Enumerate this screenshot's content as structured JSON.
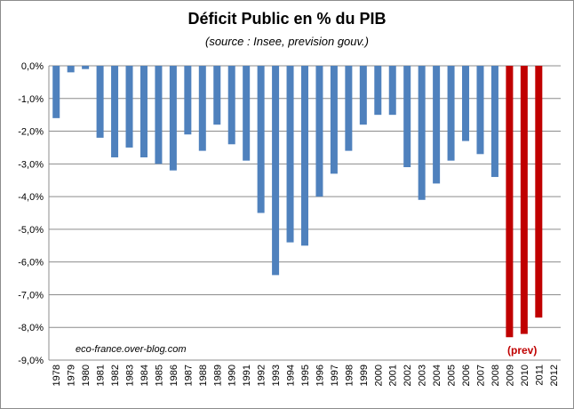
{
  "chart_data": {
    "type": "bar",
    "title": "Déficit Public en % du PIB",
    "subtitle": "(source : Insee, prevision gouv.)",
    "categories": [
      "1978",
      "1979",
      "1980",
      "1981",
      "1982",
      "1983",
      "1984",
      "1985",
      "1986",
      "1987",
      "1988",
      "1989",
      "1990",
      "1991",
      "1992",
      "1993",
      "1994",
      "1995",
      "1996",
      "1997",
      "1998",
      "1999",
      "2000",
      "2001",
      "2002",
      "2003",
      "2004",
      "2005",
      "2006",
      "2007",
      "2008",
      "2009",
      "2010",
      "2011",
      "2012"
    ],
    "series": [
      {
        "values": [
          -1.6,
          -0.2,
          -0.1,
          -2.2,
          -2.8,
          -2.5,
          -2.8,
          -3.0,
          -3.2,
          -2.1,
          -2.6,
          -1.8,
          -2.4,
          -2.9,
          -4.5,
          -6.4,
          -5.4,
          -5.5,
          -4.0,
          -3.3,
          -2.6,
          -1.8,
          -1.5,
          -1.5,
          -3.1,
          -4.1,
          -3.6,
          -2.9,
          -2.3,
          -2.7,
          -3.4,
          -8.3,
          -8.2,
          -7.7,
          null
        ]
      }
    ],
    "forecast_start": "2009",
    "colors": {
      "actual": "#4f81bd",
      "forecast": "#c00000"
    },
    "ylim": [
      -9,
      0
    ],
    "yticks": [
      "0,0%",
      "-1,0%",
      "-2,0%",
      "-3,0%",
      "-4,0%",
      "-5,0%",
      "-6,0%",
      "-7,0%",
      "-8,0%",
      "-9,0%"
    ],
    "grid": true,
    "annotations": {
      "watermark": "eco-france.over-blog.com",
      "forecast_label": "(prev)"
    }
  }
}
